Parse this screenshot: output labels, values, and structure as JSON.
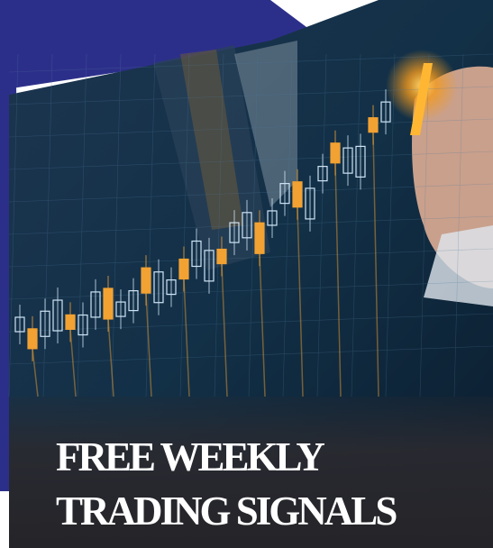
{
  "headline": {
    "line1": "FREE WEEKLY",
    "line2": "TRADING SIGNALS"
  }
}
